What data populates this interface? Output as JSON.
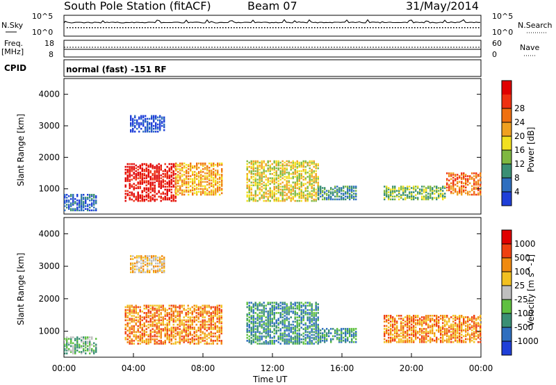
{
  "header": {
    "station": "South Pole Station (fitACF)",
    "beam": "Beam 07",
    "date": "31/May/2014"
  },
  "aux": {
    "nsky_label": "N.Sky",
    "nsearch_label": "N.Search",
    "noise_ticks_left": [
      "10^5",
      "10^0"
    ],
    "noise_ticks_right": [
      "10^5",
      "10^0"
    ],
    "freq_label": "Freq.",
    "freq_unit": "[MHz]",
    "freq_ticks": [
      "18",
      "8"
    ],
    "nave_label": "Nave",
    "nave_ticks": [
      "60",
      "0"
    ],
    "cpid_label": "CPID",
    "cpid_text": "normal (fast) -151 RF"
  },
  "chart_data": [
    {
      "type": "heatmap",
      "name": "Power",
      "xlabel": "Time UT",
      "ylabel": "Slant Range [km]",
      "xlim": [
        0,
        24
      ],
      "ylim": [
        200,
        4500
      ],
      "x_ticks": [
        "00:00",
        "04:00",
        "08:00",
        "12:00",
        "16:00",
        "20:00",
        "00:00"
      ],
      "y_ticks": [
        1000,
        2000,
        3000,
        4000
      ],
      "colorbar": {
        "label": "Power [dB]",
        "ticks": [
          "4",
          "8",
          "12",
          "16",
          "20",
          "24",
          "28"
        ],
        "colors": [
          "#1f3fd8",
          "#2f6fbf",
          "#3a8f74",
          "#7fb840",
          "#f2e01f",
          "#f0a020",
          "#f07010",
          "#ef3010",
          "#e00000"
        ]
      },
      "echo_regions": [
        {
          "t0": 0.0,
          "t1": 1.9,
          "r_lo": 300,
          "r_hi": 800,
          "level": 1
        },
        {
          "t0": 3.5,
          "t1": 6.4,
          "r_lo": 600,
          "r_hi": 1800,
          "level": 8
        },
        {
          "t0": 6.4,
          "t1": 9.1,
          "r_lo": 800,
          "r_hi": 1800,
          "level": 5
        },
        {
          "t0": 10.5,
          "t1": 14.6,
          "r_lo": 600,
          "r_hi": 1900,
          "level": 4
        },
        {
          "t0": 14.6,
          "t1": 16.8,
          "r_lo": 650,
          "r_hi": 1100,
          "level": 2
        },
        {
          "t0": 18.4,
          "t1": 22.0,
          "r_lo": 650,
          "r_hi": 1100,
          "level": 3
        },
        {
          "t0": 22.0,
          "t1": 24.0,
          "r_lo": 800,
          "r_hi": 1500,
          "level": 6
        },
        {
          "t0": 3.8,
          "t1": 5.8,
          "r_lo": 2800,
          "r_hi": 3300,
          "level": 0
        }
      ]
    },
    {
      "type": "heatmap",
      "name": "Velocity",
      "xlabel": "Time UT",
      "ylabel": "Slant Range [km]",
      "xlim": [
        0,
        24
      ],
      "ylim": [
        200,
        4500
      ],
      "x_ticks": [
        "00:00",
        "04:00",
        "08:00",
        "12:00",
        "16:00",
        "20:00",
        "00:00"
      ],
      "y_ticks": [
        1000,
        2000,
        3000,
        4000
      ],
      "colorbar": {
        "label": "Velocity [m s^-1]",
        "ticks": [
          "1000",
          "500",
          "100",
          "25",
          "-25",
          "-100",
          "-500",
          "-1000"
        ],
        "colors": [
          "#1f3fd8",
          "#2f6fbf",
          "#3a8f74",
          "#5fc040",
          "#bfbfbf",
          "#f2c020",
          "#f08a10",
          "#ef4010",
          "#e00000"
        ]
      },
      "echo_regions": [
        {
          "t0": 0.0,
          "t1": 1.9,
          "r_lo": 300,
          "r_hi": 800,
          "level": 3
        },
        {
          "t0": 3.5,
          "t1": 9.1,
          "r_lo": 600,
          "r_hi": 1800,
          "level": 6
        },
        {
          "t0": 10.5,
          "t1": 14.6,
          "r_lo": 600,
          "r_hi": 1900,
          "level": 2
        },
        {
          "t0": 14.6,
          "t1": 16.8,
          "r_lo": 650,
          "r_hi": 1100,
          "level": 2
        },
        {
          "t0": 18.4,
          "t1": 24.0,
          "r_lo": 650,
          "r_hi": 1500,
          "level": 6
        },
        {
          "t0": 3.8,
          "t1": 5.8,
          "r_lo": 2800,
          "r_hi": 3300,
          "level": 5
        }
      ]
    }
  ]
}
